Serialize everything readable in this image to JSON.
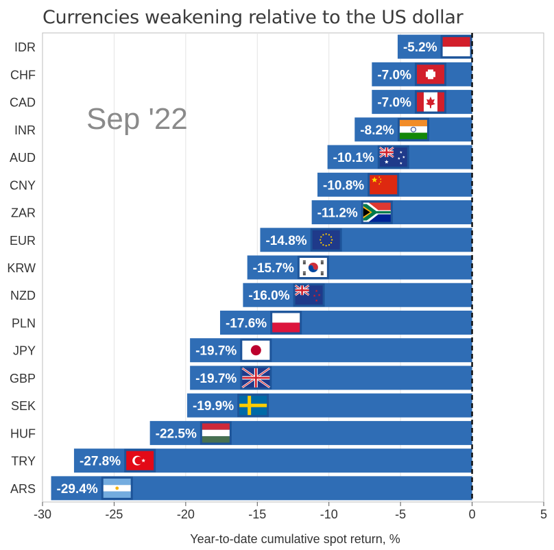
{
  "chart_data": {
    "type": "bar",
    "orientation": "horizontal",
    "title": "Currencies weakening relative to the US dollar",
    "annotation": "Sep '22",
    "xlabel": "Year-to-date cumulative spot return, %",
    "ylabel": "",
    "xlim": [
      -30,
      5
    ],
    "xticks": [
      -30,
      -25,
      -20,
      -15,
      -10,
      -5,
      0,
      5
    ],
    "grid": true,
    "categories": [
      "IDR",
      "CHF",
      "CAD",
      "INR",
      "AUD",
      "CNY",
      "ZAR",
      "EUR",
      "KRW",
      "NZD",
      "PLN",
      "JPY",
      "GBP",
      "SEK",
      "HUF",
      "TRY",
      "ARS"
    ],
    "values": [
      -5.2,
      -7.0,
      -7.0,
      -8.2,
      -10.1,
      -10.8,
      -11.2,
      -14.8,
      -15.7,
      -16.0,
      -17.6,
      -19.7,
      -19.7,
      -19.9,
      -22.5,
      -27.8,
      -29.4
    ],
    "value_labels": [
      "-5.2%",
      "-7.0%",
      "-7.0%",
      "-8.2%",
      "-10.1%",
      "-10.8%",
      "-11.2%",
      "-14.8%",
      "-15.7%",
      "-16.0%",
      "-17.6%",
      "-19.7%",
      "-19.7%",
      "-19.9%",
      "-22.5%",
      "-27.8%",
      "-29.4%"
    ],
    "flags": [
      "indonesia-flag-icon",
      "switzerland-flag-icon",
      "canada-flag-icon",
      "india-flag-icon",
      "australia-flag-icon",
      "china-flag-icon",
      "south-africa-flag-icon",
      "eu-flag-icon",
      "south-korea-flag-icon",
      "new-zealand-flag-icon",
      "poland-flag-icon",
      "japan-flag-icon",
      "uk-flag-icon",
      "sweden-flag-icon",
      "hungary-flag-icon",
      "turkey-flag-icon",
      "argentina-flag-icon"
    ],
    "bar_color": "#2f6db5",
    "zero_line_color": "#111111"
  }
}
